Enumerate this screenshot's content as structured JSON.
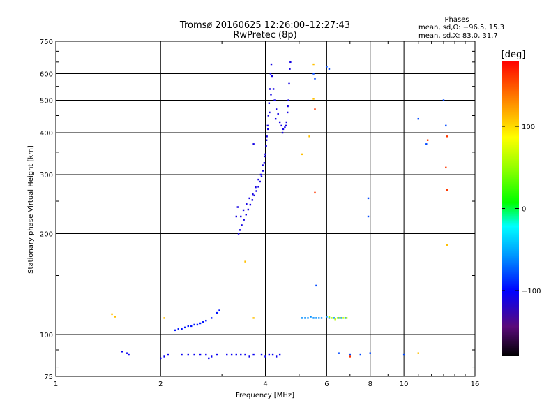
{
  "chart_data": {
    "type": "scatter",
    "title": "Tromsø 20160625 12:26:00–12:27:43",
    "subtitle": "RwPretec (8p)",
    "xlabel": "Frequency [MHz]",
    "ylabel": "Stationary phase Virtual Height [km]",
    "x_scale": "log",
    "y_scale": "log",
    "xlim": [
      1,
      16
    ],
    "ylim": [
      75,
      750
    ],
    "xticks": [
      1,
      2,
      4,
      6,
      8,
      10,
      16
    ],
    "yticks": [
      75,
      100,
      200,
      300,
      400,
      500,
      600,
      750
    ],
    "grid": true,
    "stats": {
      "header": "Phases",
      "line_o": "mean, sd,O: −96.5, 15.3",
      "line_x": "mean, sd,X:  83.0, 31.7"
    },
    "colorbar": {
      "label": "[deg]",
      "ticks": [
        "100",
        "0",
        "−100"
      ],
      "tick_values": [
        100,
        0,
        -100
      ],
      "range": [
        -180,
        180
      ]
    },
    "series": [
      {
        "points": [
          [
            3.35,
            200
          ],
          [
            3.38,
            205
          ],
          [
            3.42,
            212
          ],
          [
            3.47,
            220
          ],
          [
            3.52,
            228
          ],
          [
            3.57,
            236
          ],
          [
            3.62,
            244
          ],
          [
            3.67,
            252
          ],
          [
            3.72,
            260
          ],
          [
            3.77,
            268
          ],
          [
            3.82,
            276
          ],
          [
            3.86,
            286
          ],
          [
            3.9,
            296
          ],
          [
            3.94,
            308
          ],
          [
            3.97,
            325
          ],
          [
            4.0,
            345
          ],
          [
            4.02,
            365
          ],
          [
            4.04,
            390
          ],
          [
            4.06,
            420
          ],
          [
            4.08,
            450
          ],
          [
            4.1,
            490
          ],
          [
            4.12,
            540
          ],
          [
            4.14,
            600
          ],
          [
            4.16,
            640
          ],
          [
            3.4,
            225
          ],
          [
            3.46,
            235
          ],
          [
            3.53,
            245
          ],
          [
            3.6,
            255
          ],
          [
            3.68,
            262
          ],
          [
            3.75,
            275
          ],
          [
            3.82,
            290
          ],
          [
            3.88,
            300
          ],
          [
            3.93,
            320
          ],
          [
            3.98,
            340
          ],
          [
            4.03,
            380
          ],
          [
            4.07,
            410
          ],
          [
            4.11,
            460
          ],
          [
            4.15,
            520
          ],
          [
            4.18,
            590
          ],
          [
            3.3,
            225
          ],
          [
            3.33,
            240
          ],
          [
            3.7,
            370
          ],
          [
            4.25,
            500
          ],
          [
            4.3,
            470
          ],
          [
            4.35,
            455
          ],
          [
            4.4,
            430
          ],
          [
            4.45,
            420
          ],
          [
            4.5,
            410
          ],
          [
            4.55,
            415
          ],
          [
            4.6,
            430
          ],
          [
            4.63,
            460
          ],
          [
            4.66,
            500
          ],
          [
            4.68,
            560
          ],
          [
            4.7,
            620
          ],
          [
            4.72,
            650
          ],
          [
            4.22,
            540
          ],
          [
            4.28,
            440
          ],
          [
            4.48,
            400
          ],
          [
            4.58,
            420
          ],
          [
            4.64,
            480
          ]
        ],
        "phase_deg": -110
      },
      {
        "points": [
          [
            2.3,
            104
          ],
          [
            2.35,
            105
          ],
          [
            2.4,
            106
          ],
          [
            2.45,
            106
          ],
          [
            2.5,
            107
          ],
          [
            2.55,
            107
          ],
          [
            2.6,
            108
          ],
          [
            2.65,
            109
          ],
          [
            2.7,
            110
          ],
          [
            2.8,
            112
          ],
          [
            2.9,
            116
          ],
          [
            2.95,
            118
          ],
          [
            2.2,
            103
          ],
          [
            2.25,
            104
          ]
        ],
        "phase_deg": -95
      },
      {
        "points": [
          [
            1.55,
            89
          ],
          [
            1.6,
            88
          ],
          [
            1.62,
            87
          ],
          [
            2.05,
            86
          ],
          [
            2.1,
            87
          ],
          [
            2.3,
            87
          ],
          [
            2.4,
            87
          ],
          [
            2.5,
            87
          ],
          [
            2.6,
            87
          ],
          [
            2.7,
            87
          ],
          [
            2.8,
            86
          ],
          [
            2.9,
            87
          ],
          [
            3.1,
            87
          ],
          [
            3.2,
            87
          ],
          [
            3.3,
            87
          ],
          [
            3.4,
            87
          ],
          [
            3.5,
            87
          ],
          [
            3.6,
            86
          ],
          [
            3.7,
            87
          ],
          [
            3.9,
            87
          ],
          [
            4.0,
            86
          ],
          [
            4.1,
            87
          ],
          [
            4.2,
            87
          ],
          [
            4.3,
            86
          ],
          [
            4.4,
            87
          ],
          [
            2.0,
            85
          ],
          [
            2.75,
            85
          ]
        ],
        "phase_deg": -105
      },
      {
        "points": [
          [
            5.1,
            112
          ],
          [
            5.2,
            112
          ],
          [
            5.3,
            112
          ],
          [
            5.4,
            113
          ],
          [
            5.5,
            112
          ],
          [
            5.6,
            112
          ],
          [
            5.7,
            112
          ],
          [
            5.8,
            112
          ],
          [
            6.0,
            113
          ],
          [
            6.1,
            112
          ],
          [
            6.3,
            112
          ],
          [
            6.5,
            112
          ],
          [
            6.6,
            112
          ],
          [
            6.8,
            112
          ]
        ],
        "phase_deg": -60
      },
      {
        "points": [
          [
            6.1,
            113
          ],
          [
            6.2,
            112
          ],
          [
            6.35,
            111
          ],
          [
            6.45,
            112
          ],
          [
            6.55,
            112
          ],
          [
            6.7,
            112
          ],
          [
            6.85,
            112
          ]
        ],
        "phase_deg": 60
      },
      {
        "points": [
          [
            5.5,
            600
          ],
          [
            5.55,
            580
          ],
          [
            6.0,
            630
          ],
          [
            6.1,
            620
          ],
          [
            5.6,
            140
          ],
          [
            7.9,
            255
          ],
          [
            7.9,
            225
          ],
          [
            11.0,
            440
          ],
          [
            11.6,
            370
          ],
          [
            13.0,
            500
          ],
          [
            13.2,
            420
          ],
          [
            6.5,
            88
          ],
          [
            7.0,
            87
          ],
          [
            7.5,
            87
          ],
          [
            8.0,
            88
          ],
          [
            10.0,
            87
          ]
        ],
        "phase_deg": -80
      },
      {
        "points": [
          [
            1.45,
            115
          ],
          [
            1.48,
            113
          ],
          [
            2.05,
            112
          ],
          [
            3.7,
            112
          ],
          [
            5.35,
            390
          ],
          [
            5.1,
            345
          ],
          [
            5.5,
            505
          ],
          [
            5.5,
            640
          ],
          [
            3.5,
            165
          ],
          [
            11.0,
            88
          ],
          [
            13.3,
            185
          ]
        ],
        "phase_deg": 110
      },
      {
        "points": [
          [
            5.55,
            470
          ],
          [
            5.55,
            265
          ],
          [
            11.7,
            380
          ],
          [
            13.3,
            390
          ],
          [
            13.2,
            315
          ],
          [
            13.3,
            270
          ],
          [
            7.0,
            86
          ]
        ],
        "phase_deg": 160
      }
    ]
  }
}
